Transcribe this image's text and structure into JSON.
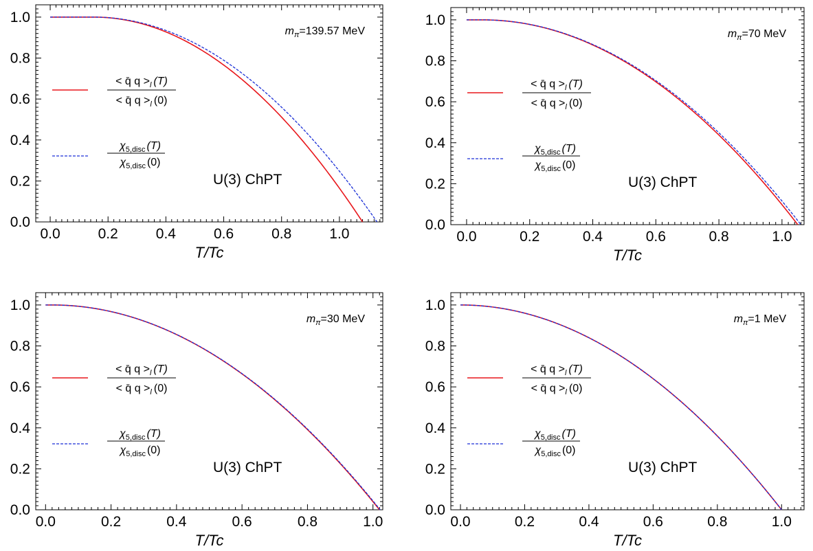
{
  "colors": {
    "chiral": "#e8161b",
    "chi5": "#1a2fd6"
  },
  "chart_data": [
    {
      "type": "line",
      "xlabel": "T/Tc",
      "xlim": [
        -0.05,
        1.15
      ],
      "ylim": [
        0.0,
        1.06
      ],
      "xticks": [
        "0.0",
        "0.2",
        "0.4",
        "0.6",
        "0.8",
        "1.0"
      ],
      "yticks": [
        "0.0",
        "0.2",
        "0.4",
        "0.6",
        "0.8",
        "1.0"
      ],
      "mass": {
        "symbol": "m",
        "sub": "π",
        "value": "=139.57 MeV"
      },
      "model": "U(3) ChPT",
      "legend": {
        "chiral_num": "< q̄ q >",
        "chiral_sub": "l",
        "chiral_argT": "(T)",
        "chiral_arg0": "(0)",
        "chi_sym": "χ",
        "chi_sub": "5,disc",
        "chi_argT": "(T)",
        "chi_arg0": "(0)"
      },
      "series": [
        {
          "key": "chiral",
          "x0": 1.08,
          "flat": 0.15,
          "style": "solid"
        },
        {
          "key": "chi5",
          "x0": 1.13,
          "flat": 0.15,
          "style": "dashed"
        }
      ]
    },
    {
      "type": "line",
      "xlabel": "T/Tc",
      "xlim": [
        -0.05,
        1.07
      ],
      "ylim": [
        0.0,
        1.06
      ],
      "xticks": [
        "0.0",
        "0.2",
        "0.4",
        "0.6",
        "0.8",
        "1.0"
      ],
      "yticks": [
        "0.0",
        "0.2",
        "0.4",
        "0.6",
        "0.8",
        "1.0"
      ],
      "mass": {
        "symbol": "m",
        "sub": "π",
        "value": "=70 MeV"
      },
      "model": "U(3) ChPT",
      "legend": {
        "chiral_num": "< q̄ q >",
        "chiral_sub": "l",
        "chiral_argT": "(T)",
        "chiral_arg0": "(0)",
        "chi_sym": "χ",
        "chi_sub": "5,disc",
        "chi_argT": "(T)",
        "chi_arg0": "(0)"
      },
      "series": [
        {
          "key": "chiral",
          "x0": 1.05,
          "flat": 0.05,
          "style": "solid"
        },
        {
          "key": "chi5",
          "x0": 1.06,
          "flat": 0.05,
          "style": "dashed"
        }
      ]
    },
    {
      "type": "line",
      "xlabel": "T/Tc",
      "xlim": [
        -0.03,
        1.03
      ],
      "ylim": [
        0.0,
        1.06
      ],
      "xticks": [
        "0.0",
        "0.2",
        "0.4",
        "0.6",
        "0.8",
        "1.0"
      ],
      "yticks": [
        "0.0",
        "0.2",
        "0.4",
        "0.6",
        "0.8",
        "1.0"
      ],
      "mass": {
        "symbol": "m",
        "sub": "π",
        "value": "=30 MeV"
      },
      "model": "U(3) ChPT",
      "legend": {
        "chiral_num": "< q̄ q >",
        "chiral_sub": "l",
        "chiral_argT": "(T)",
        "chiral_arg0": "(0)",
        "chi_sym": "χ",
        "chi_sub": "5,disc",
        "chi_argT": "(T)",
        "chi_arg0": "(0)"
      },
      "series": [
        {
          "key": "chiral",
          "x0": 1.02,
          "flat": 0.02,
          "style": "solid"
        },
        {
          "key": "chi5",
          "x0": 1.022,
          "flat": 0.02,
          "style": "dashed"
        }
      ]
    },
    {
      "type": "line",
      "xlabel": "T/Tc",
      "xlim": [
        -0.03,
        1.07
      ],
      "ylim": [
        0.0,
        1.06
      ],
      "xticks": [
        "0.0",
        "0.2",
        "0.4",
        "0.6",
        "0.8",
        "1.0"
      ],
      "yticks": [
        "0.0",
        "0.2",
        "0.4",
        "0.6",
        "0.8",
        "1.0"
      ],
      "mass": {
        "symbol": "m",
        "sub": "π",
        "value": "=1 MeV"
      },
      "model": "U(3) ChPT",
      "legend": {
        "chiral_num": "< q̄ q >",
        "chiral_sub": "l",
        "chiral_argT": "(T)",
        "chiral_arg0": "(0)",
        "chi_sym": "χ",
        "chi_sub": "5,disc",
        "chi_argT": "(T)",
        "chi_arg0": "(0)"
      },
      "series": [
        {
          "key": "chiral",
          "x0": 1.0,
          "flat": 0.0,
          "style": "solid"
        },
        {
          "key": "chi5",
          "x0": 1.0,
          "flat": 0.0,
          "style": "dashed"
        }
      ]
    }
  ]
}
